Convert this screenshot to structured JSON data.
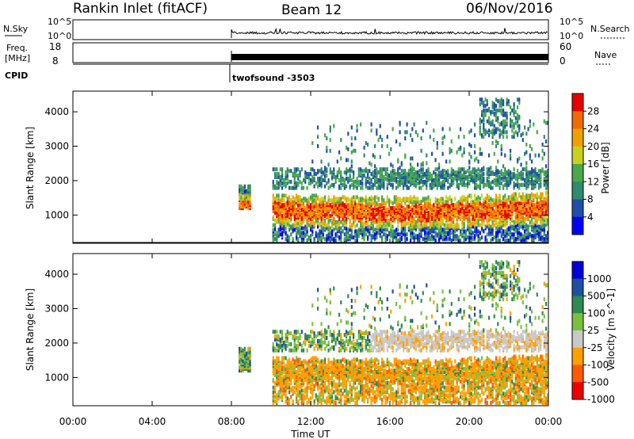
{
  "header": {
    "station": "Rankin Inlet (fitACF)",
    "beam": "Beam 12",
    "date": "06/Nov/2016"
  },
  "top_panels": {
    "nsky_label": "N.Sky",
    "nsky_ticks": [
      "10^5",
      "10^0"
    ],
    "nsearch_label": "N.Search",
    "freq_label": "Freq.",
    "freq_unit": "[MHz]",
    "freq_ticks": [
      "18",
      "8"
    ],
    "nave_ticks": [
      "60",
      "0"
    ],
    "nave_label": "Nave",
    "cpid_label": "CPID",
    "cpid_value": "twofsound -3503"
  },
  "colors": {
    "power": [
      "#0000ff",
      "#1f4fa8",
      "#2f8a6e",
      "#4aa84a",
      "#c8d020",
      "#f0a000",
      "#f06a00",
      "#e60000"
    ],
    "velocity": [
      "#ee0000",
      "#ff5a00",
      "#ffa000",
      "#c8c8c8",
      "#7ac040",
      "#2e8a50",
      "#1e4fa0",
      "#0000dd"
    ]
  },
  "chart_data": [
    {
      "type": "heatmap",
      "name": "power",
      "xlabel": "",
      "ylabel": "Slant Range [km]",
      "x_ticks": [
        "00:00",
        "04:00",
        "08:00",
        "12:00",
        "16:00",
        "20:00",
        "00:00"
      ],
      "xlim_hours": [
        0,
        24
      ],
      "y_ticks": [
        1000,
        2000,
        3000,
        4000
      ],
      "ylim": [
        180,
        4600
      ],
      "colorbar_label": "Power [dB]",
      "colorbar_ticks": [
        "4",
        "8",
        "12",
        "16",
        "20",
        "24",
        "28"
      ],
      "data_start_hour": 8
    },
    {
      "type": "heatmap",
      "name": "velocity",
      "xlabel": "Time UT",
      "ylabel": "Slant Range [km]",
      "x_ticks": [
        "00:00",
        "04:00",
        "08:00",
        "12:00",
        "16:00",
        "20:00",
        "00:00"
      ],
      "xlim_hours": [
        0,
        24
      ],
      "y_ticks": [
        1000,
        2000,
        3000,
        4000
      ],
      "ylim": [
        180,
        4600
      ],
      "colorbar_label": "Velocity [m s^-1]",
      "colorbar_ticks": [
        "1000",
        "500",
        "100",
        "25",
        "-25",
        "-100",
        "-500",
        "-1000"
      ],
      "data_start_hour": 8
    }
  ]
}
